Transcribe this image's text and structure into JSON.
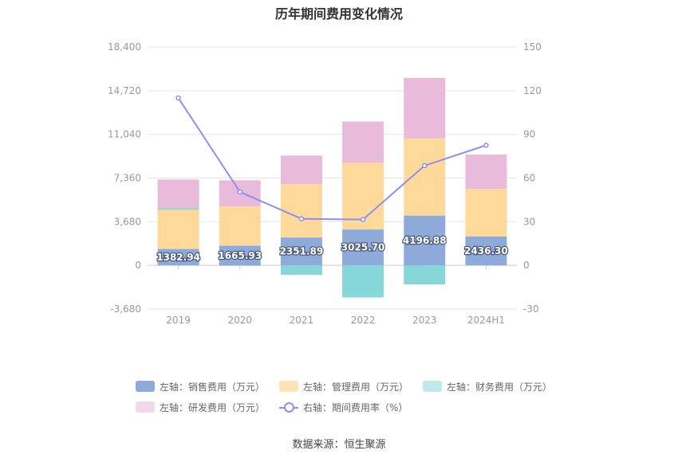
{
  "title": "历年期间费用变化情况",
  "source": "数据来源：恒生聚源",
  "chart_data": {
    "type": "bar",
    "stacked": true,
    "categories": [
      "2019",
      "2020",
      "2021",
      "2022",
      "2023",
      "2024H1"
    ],
    "y_left": {
      "ticks": [
        -3680,
        0,
        3680,
        7360,
        11040,
        14720,
        18400
      ],
      "tick_labels": [
        "-3,680",
        "0",
        "3,680",
        "7,360",
        "11,040",
        "14,720",
        "18,400"
      ],
      "ylim": [
        -3680,
        18400
      ]
    },
    "y_right": {
      "ticks": [
        -30,
        0,
        30,
        60,
        90,
        120,
        150
      ],
      "tick_labels": [
        "-30",
        "0",
        "30",
        "60",
        "90",
        "120",
        "150"
      ],
      "ylim": [
        -30,
        150
      ]
    },
    "series": [
      {
        "name": "左轴：销售费用（万元）",
        "axis": "left",
        "color": "#8eaadb",
        "values": [
          1382.94,
          1665.93,
          2351.89,
          3025.7,
          4196.88,
          2436.3
        ],
        "labels": [
          "1382.94",
          "1665.93",
          "2351.89",
          "3025.70",
          "4196.88",
          "2436.30"
        ]
      },
      {
        "name": "左轴：管理费用（万元）",
        "axis": "left",
        "color": "#ffd999",
        "values": [
          3300,
          3300,
          4500,
          5600,
          6500,
          4000
        ]
      },
      {
        "name": "左轴：财务费用（万元）",
        "axis": "left",
        "color": "#87d6d9",
        "values": [
          150,
          -40,
          -800,
          -2700,
          -1600,
          0
        ]
      },
      {
        "name": "左轴：研发费用（万元）",
        "axis": "left",
        "color": "#e8bbdb",
        "values": [
          2400,
          2200,
          2400,
          3500,
          5100,
          2900
        ]
      },
      {
        "name": "右轴：期间费用率（%）",
        "axis": "right",
        "type": "line",
        "color": "#8b8ff2",
        "values": [
          115,
          50.5,
          32,
          31.5,
          68.5,
          82.5
        ]
      }
    ],
    "legend_position": "bottom",
    "grid": true
  },
  "legend_swatch_colors": [
    "#8eaadb",
    "#ffe3b5",
    "#bfe9ea",
    "#f3d8ec"
  ]
}
